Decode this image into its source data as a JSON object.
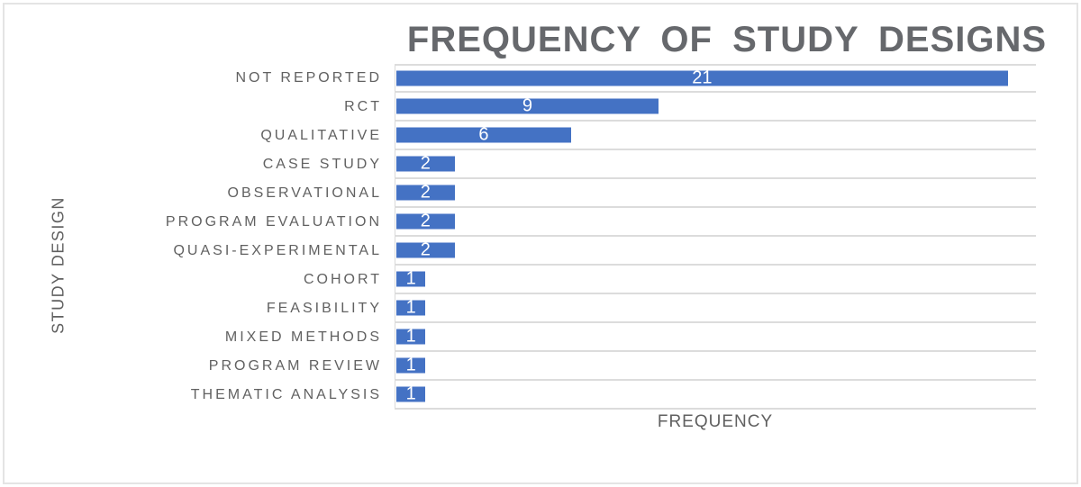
{
  "chart_data": {
    "type": "bar",
    "orientation": "horizontal",
    "title": "FREQUENCY OF STUDY DESIGNS",
    "xlabel": "FREQUENCY",
    "ylabel": "STUDY DESIGN",
    "categories": [
      "NOT REPORTED",
      "RCT",
      "QUALITATIVE",
      "CASE STUDY",
      "OBSERVATIONAL",
      "PROGRAM EVALUATION",
      "QUASI-EXPERIMENTAL",
      "COHORT",
      "FEASIBILITY",
      "MIXED METHODS",
      "PROGRAM REVIEW",
      "THEMATIC ANALYSIS"
    ],
    "values": [
      21,
      9,
      6,
      2,
      2,
      2,
      2,
      1,
      1,
      1,
      1,
      1
    ],
    "xlim": [
      0,
      22
    ],
    "legend": "none",
    "grid": "horizontal category separator lines",
    "data_labels": "centered inside bars",
    "colors": {
      "bar": "#4472C4",
      "data_label_text": "#FFFFFF",
      "title_text": "#66686C",
      "axis_text": "#616161",
      "gridline": "#DCDCDC",
      "chart_border": "#E4E4E4"
    }
  }
}
